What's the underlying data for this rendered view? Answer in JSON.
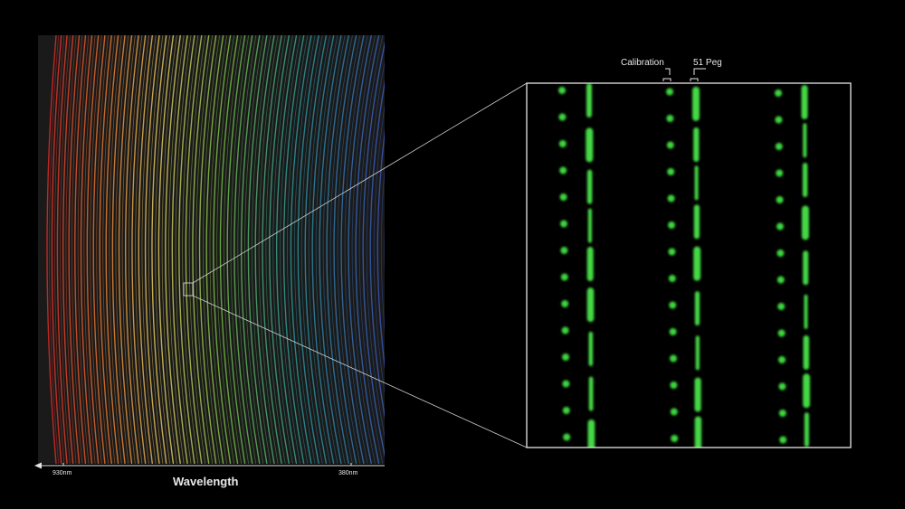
{
  "axis": {
    "title": "Wavelength",
    "tick_left": "930nm",
    "tick_right": "380nm"
  },
  "inset": {
    "label_calibration": "Calibration",
    "label_peg": "51 Peg"
  },
  "colors": {
    "background": "#000000",
    "inset_border": "#e6e6e6",
    "spot_green": "#3dd63d",
    "spectrum_red": "#d8322a",
    "spectrum_green": "#7fc84a",
    "spectrum_blue": "#2a52b8"
  }
}
